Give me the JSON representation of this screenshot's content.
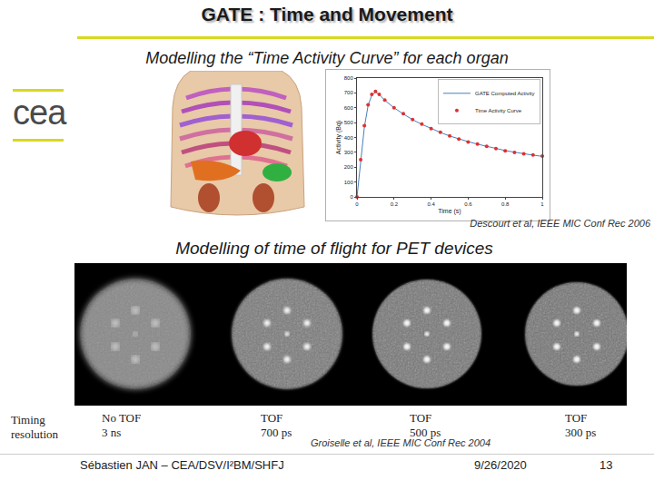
{
  "chart_data": {
    "type": "line",
    "xlabel": "Time (s)",
    "ylabel": "Activity (Bq)",
    "xlim": [
      0,
      1
    ],
    "xticks": [
      0,
      0.2,
      0.4,
      0.6,
      0.8,
      1
    ],
    "ylim": [
      0,
      800
    ],
    "yticks": [
      0,
      100,
      200,
      300,
      400,
      500,
      600,
      700,
      800
    ],
    "grid": false,
    "legend": "upper right",
    "series": [
      {
        "name": "GATE Computed Activity",
        "type": "line",
        "color": "#4a7ebb",
        "x": [
          0,
          0.02,
          0.04,
          0.06,
          0.08,
          0.1,
          0.12,
          0.15,
          0.2,
          0.25,
          0.3,
          0.35,
          0.4,
          0.45,
          0.5,
          0.55,
          0.6,
          0.65,
          0.7,
          0.75,
          0.8,
          0.85,
          0.9,
          0.95,
          1
        ],
        "values": [
          0,
          240,
          470,
          615,
          685,
          705,
          690,
          650,
          600,
          558,
          520,
          488,
          460,
          434,
          410,
          390,
          372,
          355,
          340,
          326,
          312,
          301,
          290,
          281,
          273
        ]
      },
      {
        "name": "Time Activity Curve",
        "type": "scatter",
        "color": "#e03030",
        "marker": "circle",
        "x": [
          0,
          0.02,
          0.04,
          0.06,
          0.08,
          0.1,
          0.12,
          0.15,
          0.2,
          0.25,
          0.3,
          0.35,
          0.4,
          0.45,
          0.5,
          0.55,
          0.6,
          0.65,
          0.7,
          0.75,
          0.8,
          0.85,
          0.9,
          0.95,
          1
        ],
        "values": [
          0,
          250,
          480,
          620,
          690,
          710,
          690,
          652,
          600,
          560,
          520,
          490,
          460,
          435,
          410,
          390,
          370,
          355,
          340,
          325,
          310,
          300,
          290,
          282,
          275
        ]
      }
    ]
  },
  "slide": {
    "title": "GATE : Time and Movement",
    "subtitle_1": "Modelling the “Time Activity Curve” for each organ",
    "logo": "cea",
    "citation_1": "Descourt et al, IEEE MIC Conf Rec 2006",
    "subtitle_2": "Modelling of time of flight for PET devices",
    "timing_label": "Timing resolution",
    "panels": [
      {
        "label": "No TOF",
        "value": "3 ns"
      },
      {
        "label": "TOF",
        "value": "700 ps"
      },
      {
        "label": "TOF",
        "value": "500 ps"
      },
      {
        "label": "TOF",
        "value": "300 ps"
      }
    ],
    "citation_2": "Groiselle et al, IEEE MIC Conf Rec 2004",
    "footer": {
      "author": "Sébastien JAN – CEA/DSV/I²BM/SHFJ",
      "date": "9/26/2020",
      "page": "13"
    }
  }
}
